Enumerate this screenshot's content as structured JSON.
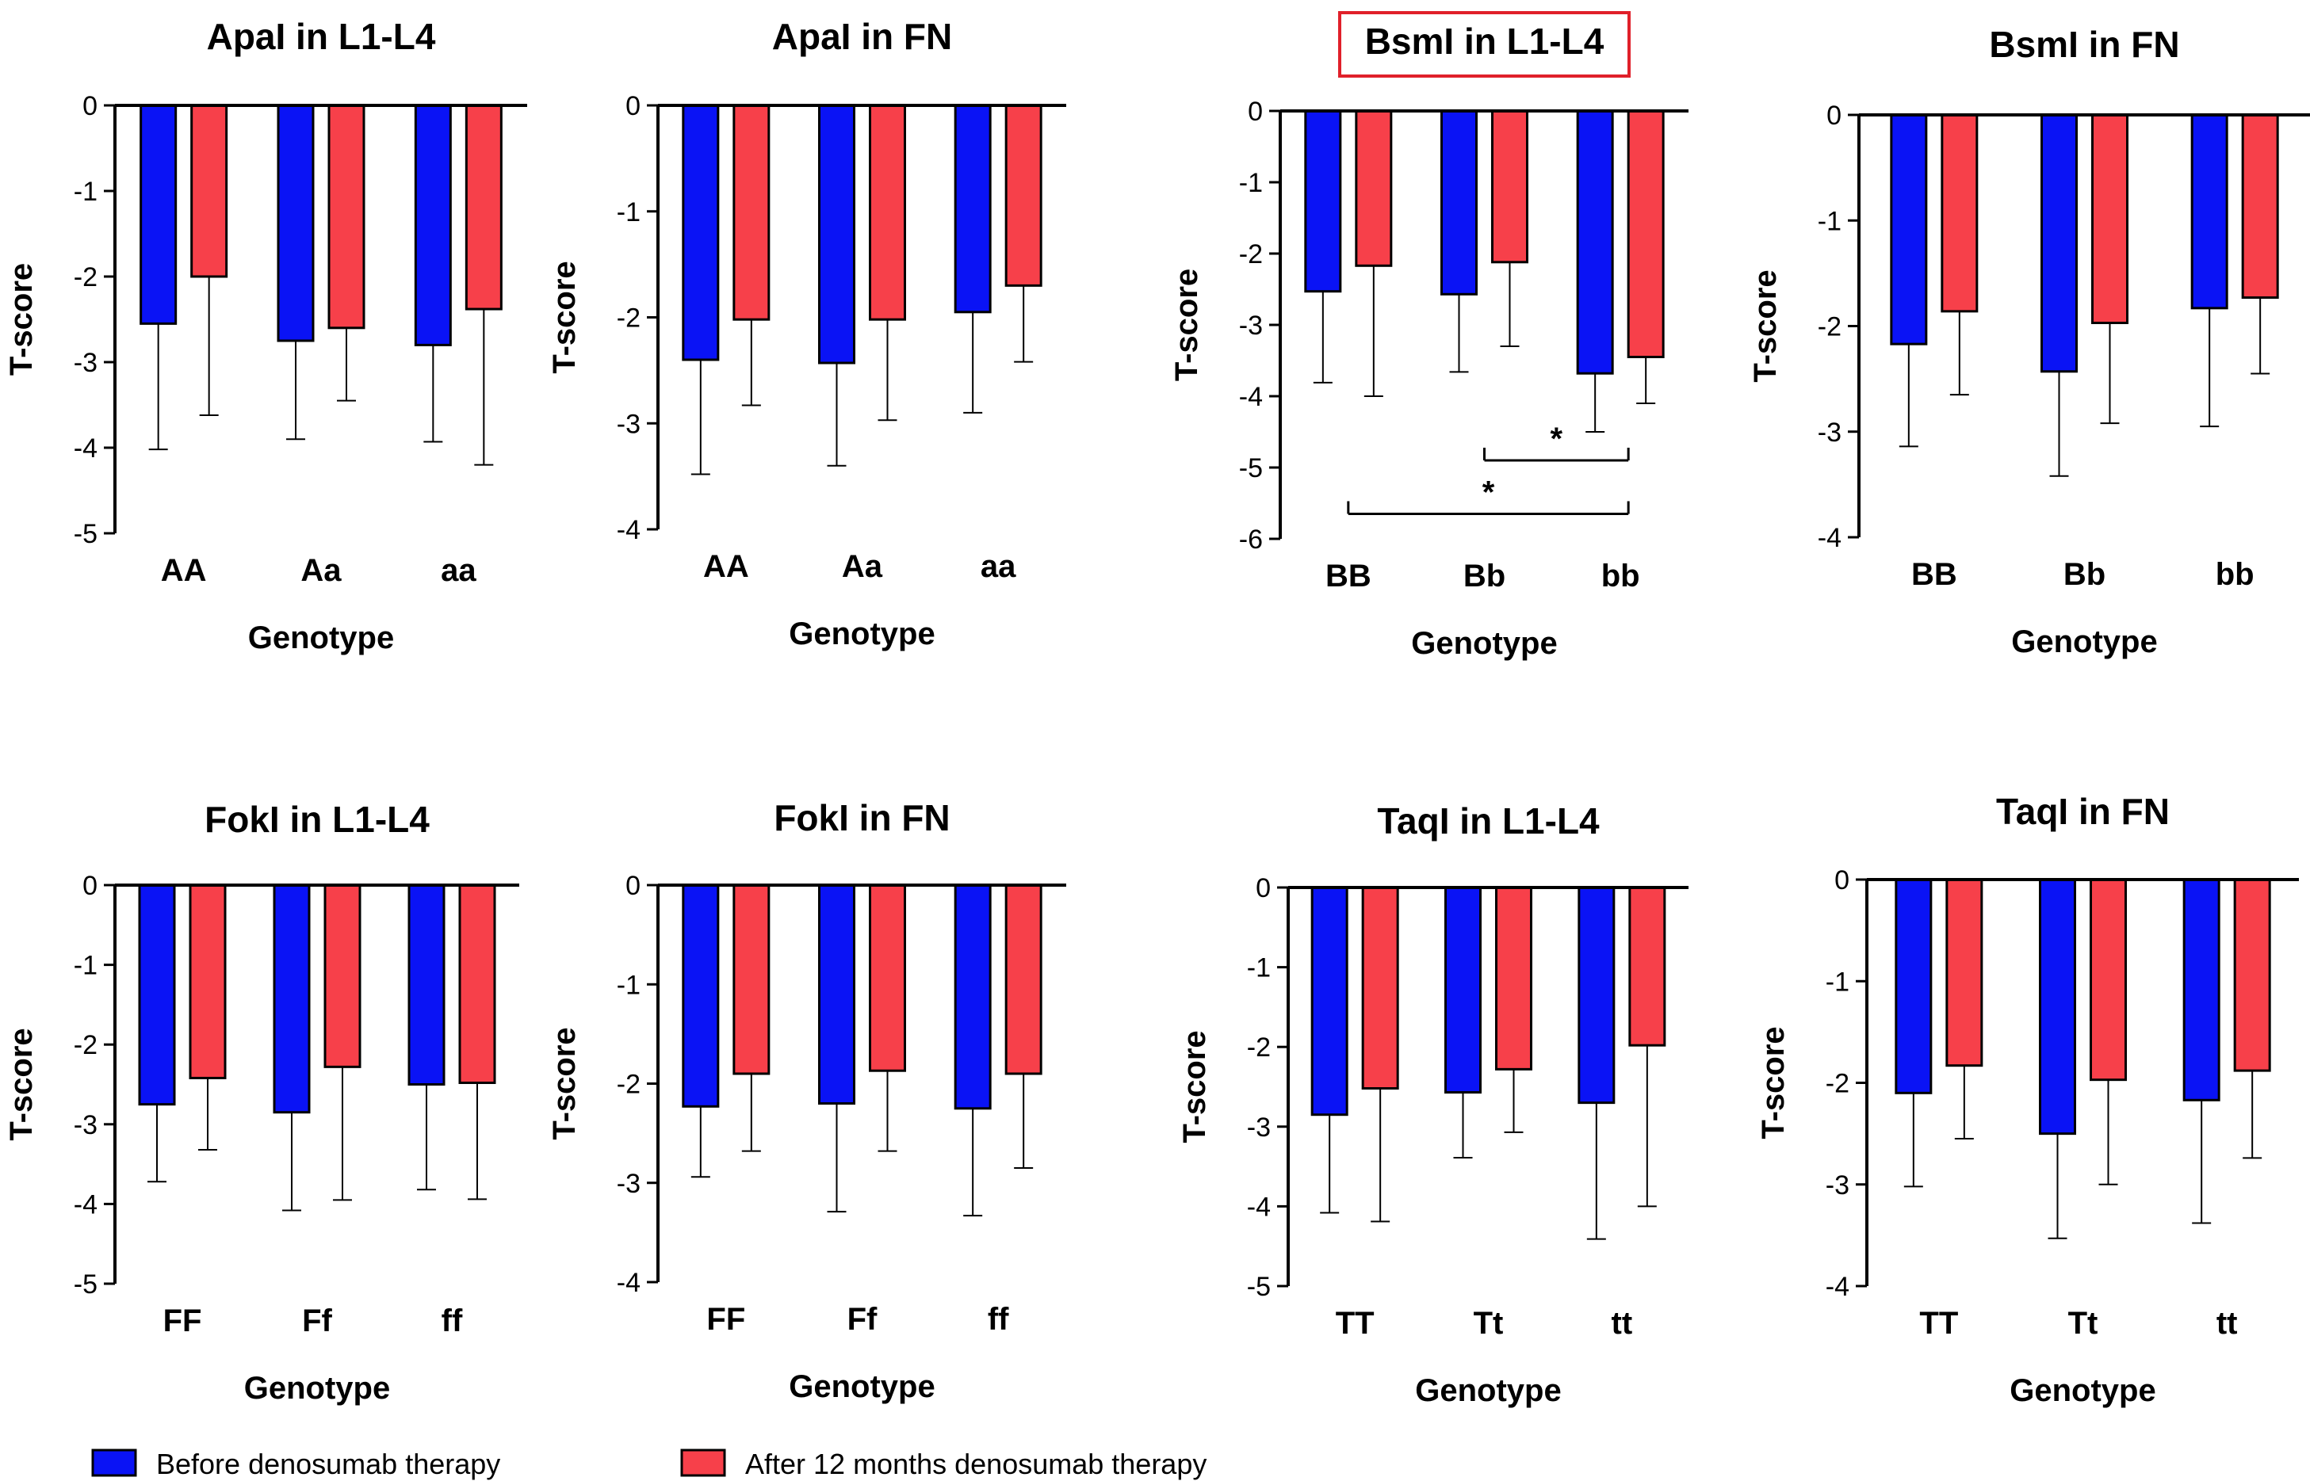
{
  "colors": {
    "before": "#0a13f5",
    "after": "#f7404a",
    "highlight": "#e0202a"
  },
  "legend": [
    {
      "label": "Before denosumab therapy",
      "color": "#0a13f5"
    },
    {
      "label": "After 12 months denosumab therapy",
      "color": "#f7404a"
    }
  ],
  "chart_data": [
    {
      "type": "bar",
      "title": "ApaI in L1-L4",
      "xlabel": "Genotype",
      "ylabel": "T-score",
      "ylim": [
        -5,
        0
      ],
      "yticks": [
        0,
        -1,
        -2,
        -3,
        -4,
        -5
      ],
      "highlighted": false,
      "categories": [
        "AA",
        "Aa",
        "aa"
      ],
      "series": [
        {
          "name": "Before denosumab therapy",
          "values": [
            -2.55,
            -2.75,
            -2.8
          ],
          "error": [
            1.47,
            1.15,
            1.13
          ]
        },
        {
          "name": "After 12 months denosumab therapy",
          "values": [
            -2.0,
            -2.6,
            -2.38
          ],
          "error": [
            1.62,
            0.85,
            1.82
          ]
        }
      ],
      "annotations": []
    },
    {
      "type": "bar",
      "title": "ApaI in FN",
      "xlabel": "Genotype",
      "ylabel": "T-score",
      "ylim": [
        -4,
        0
      ],
      "yticks": [
        0,
        -1,
        -2,
        -3,
        -4
      ],
      "highlighted": false,
      "categories": [
        "AA",
        "Aa",
        "aa"
      ],
      "series": [
        {
          "name": "Before denosumab therapy",
          "values": [
            -2.4,
            -2.43,
            -1.95
          ],
          "error": [
            1.08,
            0.97,
            0.95
          ]
        },
        {
          "name": "After 12 months denosumab therapy",
          "values": [
            -2.02,
            -2.02,
            -1.7
          ],
          "error": [
            0.81,
            0.95,
            0.72
          ]
        }
      ],
      "annotations": []
    },
    {
      "type": "bar",
      "title": "BsmI in L1-L4",
      "xlabel": "Genotype",
      "ylabel": "T-score",
      "ylim": [
        -6,
        0
      ],
      "yticks": [
        0,
        -1,
        -2,
        -3,
        -4,
        -5,
        -6
      ],
      "highlighted": true,
      "categories": [
        "BB",
        "Bb",
        "bb"
      ],
      "series": [
        {
          "name": "Before denosumab therapy",
          "values": [
            -2.53,
            -2.57,
            -3.68
          ],
          "error": [
            1.28,
            1.09,
            0.82
          ]
        },
        {
          "name": "After 12 months denosumab therapy",
          "values": [
            -2.17,
            -2.12,
            -3.45
          ],
          "error": [
            1.83,
            1.18,
            0.65
          ]
        }
      ],
      "annotations": [
        {
          "from": 1,
          "to": 2,
          "y": -4.9,
          "label": "*"
        },
        {
          "from": 0,
          "to": 2,
          "y": -5.65,
          "label": "*"
        }
      ]
    },
    {
      "type": "bar",
      "title": "BsmI in FN",
      "xlabel": "Genotype",
      "ylabel": "T-score",
      "ylim": [
        -4,
        0
      ],
      "yticks": [
        0,
        -1,
        -2,
        -3,
        -4
      ],
      "highlighted": false,
      "categories": [
        "BB",
        "Bb",
        "bb"
      ],
      "series": [
        {
          "name": "Before denosumab therapy",
          "values": [
            -2.17,
            -2.43,
            -1.83
          ],
          "error": [
            0.97,
            0.99,
            1.12
          ]
        },
        {
          "name": "After 12 months denosumab therapy",
          "values": [
            -1.86,
            -1.97,
            -1.73
          ],
          "error": [
            0.79,
            0.95,
            0.72
          ]
        }
      ],
      "annotations": []
    },
    {
      "type": "bar",
      "title": "FokI in L1-L4",
      "xlabel": "Genotype",
      "ylabel": "T-score",
      "ylim": [
        -5,
        0
      ],
      "yticks": [
        0,
        -1,
        -2,
        -3,
        -4,
        -5
      ],
      "highlighted": false,
      "categories": [
        "FF",
        "Ff",
        "ff"
      ],
      "series": [
        {
          "name": "Before denosumab therapy",
          "values": [
            -2.75,
            -2.85,
            -2.5
          ],
          "error": [
            0.97,
            1.23,
            1.32
          ]
        },
        {
          "name": "After 12 months denosumab therapy",
          "values": [
            -2.42,
            -2.28,
            -2.48
          ],
          "error": [
            0.9,
            1.67,
            1.46
          ]
        }
      ],
      "annotations": []
    },
    {
      "type": "bar",
      "title": "FokI in FN",
      "xlabel": "Genotype",
      "ylabel": "T-score",
      "ylim": [
        -4,
        0
      ],
      "yticks": [
        0,
        -1,
        -2,
        -3,
        -4
      ],
      "highlighted": false,
      "categories": [
        "FF",
        "Ff",
        "ff"
      ],
      "series": [
        {
          "name": "Before denosumab therapy",
          "values": [
            -2.23,
            -2.2,
            -2.25
          ],
          "error": [
            0.71,
            1.09,
            1.08
          ]
        },
        {
          "name": "After 12 months denosumab therapy",
          "values": [
            -1.9,
            -1.87,
            -1.9
          ],
          "error": [
            0.78,
            0.81,
            0.95
          ]
        }
      ],
      "annotations": []
    },
    {
      "type": "bar",
      "title": "TaqI in L1-L4",
      "xlabel": "Genotype",
      "ylabel": "T-score",
      "ylim": [
        -5,
        0
      ],
      "yticks": [
        0,
        -1,
        -2,
        -3,
        -4,
        -5
      ],
      "highlighted": false,
      "categories": [
        "TT",
        "Tt",
        "tt"
      ],
      "series": [
        {
          "name": "Before denosumab therapy",
          "values": [
            -2.85,
            -2.57,
            -2.7
          ],
          "error": [
            1.23,
            0.82,
            1.71
          ]
        },
        {
          "name": "After 12 months denosumab therapy",
          "values": [
            -2.52,
            -2.28,
            -1.98
          ],
          "error": [
            1.67,
            0.79,
            2.02
          ]
        }
      ],
      "annotations": []
    },
    {
      "type": "bar",
      "title": "TaqI in FN",
      "xlabel": "Genotype",
      "ylabel": "T-score",
      "ylim": [
        -4,
        0
      ],
      "yticks": [
        0,
        -1,
        -2,
        -3,
        -4
      ],
      "highlighted": false,
      "categories": [
        "TT",
        "Tt",
        "tt"
      ],
      "series": [
        {
          "name": "Before denosumab therapy",
          "values": [
            -2.1,
            -2.5,
            -2.17
          ],
          "error": [
            0.92,
            1.03,
            1.21
          ]
        },
        {
          "name": "After 12 months denosumab therapy",
          "values": [
            -1.83,
            -1.97,
            -1.88
          ],
          "error": [
            0.72,
            1.03,
            0.86
          ]
        }
      ],
      "annotations": []
    }
  ]
}
